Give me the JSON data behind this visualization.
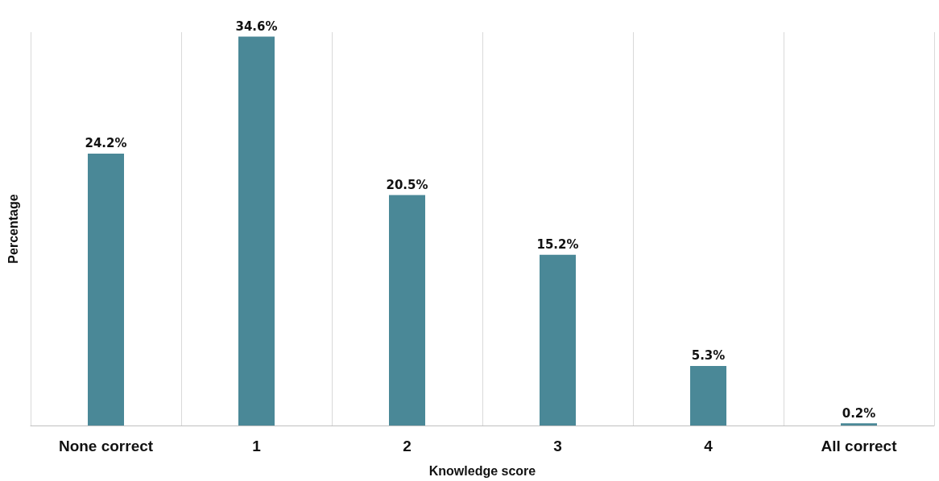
{
  "chart_data": {
    "type": "bar",
    "xlabel": "Knowledge score",
    "ylabel": "Percentage",
    "categories": [
      "None correct",
      "1",
      "2",
      "3",
      "4",
      "All correct"
    ],
    "values": [
      24.2,
      34.6,
      20.5,
      15.2,
      5.3,
      0.2
    ],
    "value_labels": [
      "24.2%",
      "34.6%",
      "20.5%",
      "15.2%",
      "5.3%",
      "0.2%"
    ],
    "color": "#4a8897",
    "grid": "x",
    "tick_labels": "x"
  }
}
